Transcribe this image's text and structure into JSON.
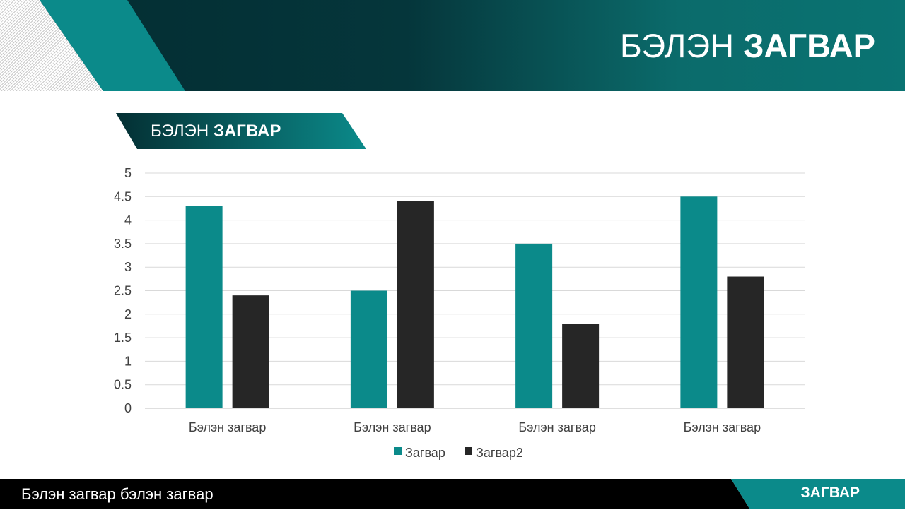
{
  "header": {
    "title_light": "БЭЛЭН",
    "title_bold": "ЗАГВАР"
  },
  "subtitle": {
    "light": "БЭЛЭН",
    "bold": "ЗАГВАР"
  },
  "footer": {
    "left_text": "Бэлэн загвар бэлэн загвар",
    "right_text": "ЗАГВАР"
  },
  "colors": {
    "teal": "#0b8a8a",
    "dark": "#262626",
    "header_dark": "#032c31"
  },
  "chart_data": {
    "type": "bar",
    "categories": [
      "Бэлэн загвар",
      "Бэлэн загвар",
      "Бэлэн загвар",
      "Бэлэн загвар"
    ],
    "series": [
      {
        "name": "Загвар",
        "color": "#0b8a8a",
        "values": [
          4.3,
          2.5,
          3.5,
          4.5
        ]
      },
      {
        "name": "Загвар2",
        "color": "#262626",
        "values": [
          2.4,
          4.4,
          1.8,
          2.8
        ]
      }
    ],
    "yticks": [
      "0",
      "0.5",
      "1",
      "1.5",
      "2",
      "2.5",
      "3",
      "3.5",
      "4",
      "4.5",
      "5"
    ],
    "ylim": [
      0,
      5
    ],
    "grid": true,
    "legend": "bottom"
  }
}
